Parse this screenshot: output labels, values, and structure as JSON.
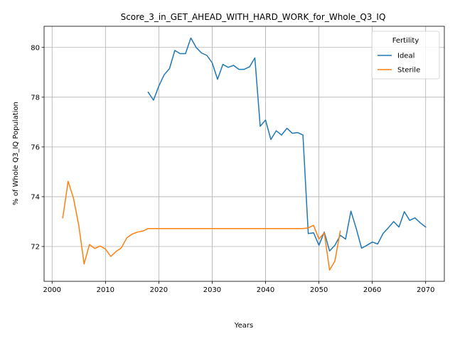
{
  "chart_data": {
    "type": "line",
    "title": "Score_3_in_GET_AHEAD_WITH_HARD_WORK_for_Whole_Q3_IQ",
    "xlabel": "Years",
    "ylabel": "% of Whole Q3_IQ Population",
    "xlim": [
      1998.5,
      2073.5
    ],
    "ylim": [
      70.6,
      80.85
    ],
    "xticks": [
      2000,
      2010,
      2020,
      2030,
      2040,
      2050,
      2060,
      2070
    ],
    "yticks": [
      72,
      74,
      76,
      78,
      80
    ],
    "grid": true,
    "legend": {
      "title": "Fertility",
      "placement": "top-right"
    },
    "series": [
      {
        "name": "Ideal",
        "color": "#1f77b4",
        "x": [
          2018,
          2019,
          2020,
          2021,
          2022,
          2023,
          2024,
          2025,
          2026,
          2027,
          2028,
          2029,
          2030,
          2031,
          2032,
          2033,
          2034,
          2035,
          2036,
          2037,
          2038,
          2039,
          2040,
          2041,
          2042,
          2043,
          2044,
          2045,
          2046,
          2047,
          2048,
          2049,
          2050,
          2051,
          2052,
          2053,
          2054,
          2055,
          2056,
          2057,
          2058,
          2059,
          2060,
          2061,
          2062,
          2063,
          2064,
          2065,
          2066,
          2067,
          2068,
          2069,
          2070
        ],
        "y": [
          78.2,
          77.88,
          78.45,
          78.9,
          79.15,
          79.88,
          79.75,
          79.75,
          80.38,
          80.0,
          79.78,
          79.68,
          79.38,
          78.72,
          79.32,
          79.2,
          79.28,
          79.12,
          79.12,
          79.22,
          79.58,
          76.83,
          77.08,
          76.3,
          76.65,
          76.48,
          76.75,
          76.55,
          76.58,
          76.48,
          72.52,
          72.55,
          72.05,
          72.58,
          71.82,
          72.05,
          72.45,
          72.3,
          73.42,
          72.72,
          71.93,
          72.05,
          72.18,
          72.1,
          72.52,
          72.75,
          73.0,
          72.78,
          73.4,
          73.05,
          73.15,
          72.95,
          72.78
        ]
      },
      {
        "name": "Sterile",
        "color": "#ff7f0e",
        "x": [
          2002,
          2003,
          2004,
          2005,
          2006,
          2007,
          2008,
          2009,
          2010,
          2011,
          2012,
          2013,
          2014,
          2015,
          2016,
          2017,
          2018,
          2019,
          2020,
          2021,
          2022,
          2023,
          2024,
          2025,
          2026,
          2027,
          2028,
          2029,
          2030,
          2031,
          2032,
          2033,
          2034,
          2035,
          2036,
          2037,
          2038,
          2039,
          2040,
          2041,
          2042,
          2043,
          2044,
          2045,
          2046,
          2047,
          2048,
          2049,
          2050,
          2051,
          2052,
          2053,
          2054
        ],
        "y": [
          73.15,
          74.62,
          73.95,
          72.85,
          71.3,
          72.08,
          71.92,
          72.02,
          71.9,
          71.6,
          71.8,
          71.95,
          72.35,
          72.5,
          72.58,
          72.62,
          72.72,
          72.72,
          72.72,
          72.72,
          72.72,
          72.72,
          72.72,
          72.72,
          72.72,
          72.72,
          72.72,
          72.72,
          72.72,
          72.72,
          72.72,
          72.72,
          72.72,
          72.72,
          72.72,
          72.72,
          72.72,
          72.72,
          72.72,
          72.72,
          72.72,
          72.72,
          72.72,
          72.72,
          72.72,
          72.72,
          72.75,
          72.85,
          72.3,
          72.55,
          71.05,
          71.42,
          72.62
        ]
      }
    ]
  }
}
